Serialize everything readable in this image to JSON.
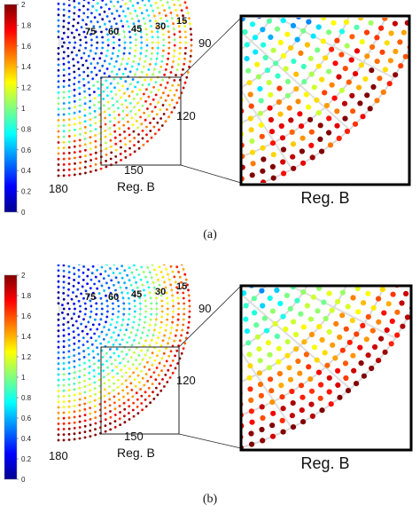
{
  "figure": {
    "panels": [
      {
        "id": "a",
        "caption": "(a)",
        "colorbar": {
          "ticks": [
            "2",
            "1.8",
            "1.6",
            "1.4",
            "1.2",
            "1",
            "0.8",
            "0.6",
            "0.4",
            "0.2",
            "0"
          ]
        },
        "angle_labels": [
          "75",
          "60",
          "45",
          "30",
          "15",
          "90",
          "120",
          "150",
          "180"
        ],
        "region_label": "Reg. B",
        "zoom_label": "Reg. B"
      },
      {
        "id": "b",
        "caption": "(b)",
        "colorbar": {
          "ticks": [
            "2",
            "1.8",
            "1.6",
            "1.4",
            "1.2",
            "1",
            "0.8",
            "0.6",
            "0.4",
            "0.2",
            "0"
          ]
        },
        "angle_labels": [
          "75",
          "60",
          "45",
          "30",
          "15",
          "90",
          "120",
          "150",
          "180"
        ],
        "region_label": "Reg. B",
        "zoom_label": "Reg. B"
      }
    ]
  },
  "chart_data": [
    {
      "type": "scatter",
      "panel": "a",
      "coordinate_system": "polar",
      "angle_ticks_deg": [
        15,
        30,
        45,
        60,
        75,
        90,
        120,
        150,
        180
      ],
      "color_scale": {
        "colormap": "jet",
        "range": [
          0,
          2
        ],
        "ticks": [
          0,
          0.2,
          0.4,
          0.6,
          0.8,
          1.0,
          1.2,
          1.4,
          1.6,
          1.8,
          2.0
        ]
      },
      "value_trend": "values near 0 close to the pole, rising toward about 2 at large radius; largest values near 150-180 deg",
      "zoom_region": "Reg. B"
    },
    {
      "type": "scatter",
      "panel": "b",
      "coordinate_system": "polar",
      "angle_ticks_deg": [
        15,
        30,
        45,
        60,
        75,
        90,
        120,
        150,
        180
      ],
      "color_scale": {
        "colormap": "jet",
        "range": [
          0,
          2
        ],
        "ticks": [
          0,
          0.2,
          0.4,
          0.6,
          0.8,
          1.0,
          1.2,
          1.4,
          1.6,
          1.8,
          2.0
        ]
      },
      "value_trend": "similar to (a) with a smoother radial increase; mostly cyan to yellow inside, red at the outer rim",
      "zoom_region": "Reg. B"
    }
  ]
}
